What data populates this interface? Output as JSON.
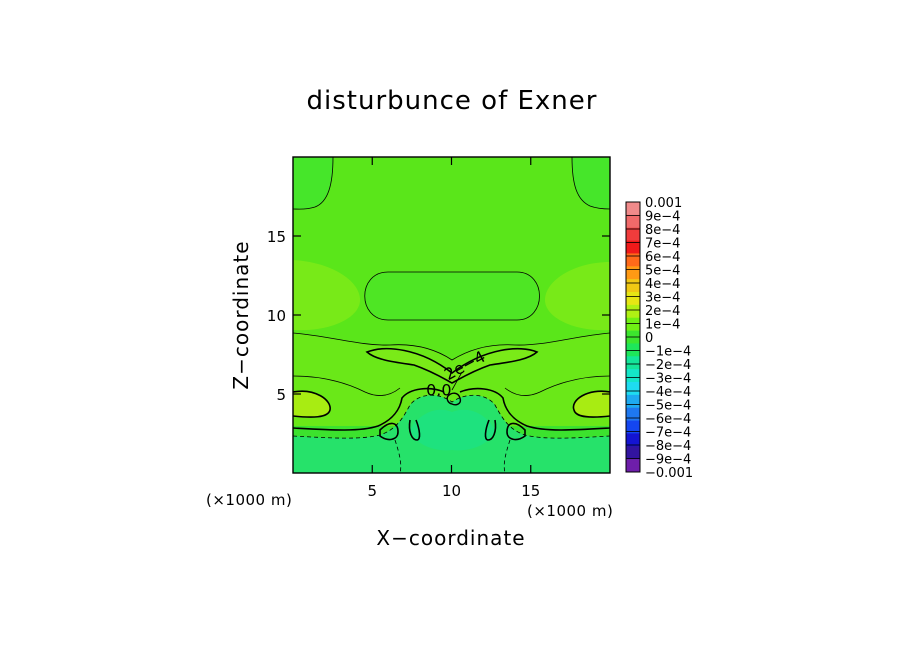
{
  "chart_data": {
    "type": "heatmap",
    "title": "disturbunce of Exner",
    "xlabel": "X−coordinate",
    "ylabel": "Z−coordinate",
    "x_unit_left": "(×1000 m)",
    "x_unit_right": "(×1000 m)",
    "xlim": [
      0,
      20
    ],
    "ylim": [
      0,
      20
    ],
    "x_ticks": [
      5,
      10,
      15
    ],
    "y_ticks": [
      5,
      10,
      15
    ],
    "x_tick_labels": [
      "5",
      "10",
      "15"
    ],
    "y_tick_labels": [
      "5",
      "10",
      "15"
    ],
    "contour_labels": [
      {
        "text": "0.0",
        "x": 9.2,
        "z": 4.9
      },
      {
        "text": "2e−4",
        "x": 11.0,
        "z": 6.5
      }
    ],
    "colorbar": {
      "labels": [
        "0.001",
        "9e−4",
        "8e−4",
        "7e−4",
        "6e−4",
        "5e−4",
        "4e−4",
        "3e−4",
        "2e−4",
        "1e−4",
        "0",
        "−1e−4",
        "−2e−4",
        "−3e−4",
        "−4e−4",
        "−5e−4",
        "−6e−4",
        "−7e−4",
        "−8e−4",
        "−9e−4",
        "−0.001"
      ],
      "values": [
        0.001,
        0.0009,
        0.0008,
        0.0007,
        0.0006,
        0.0005,
        0.0004,
        0.0003,
        0.0002,
        0.0001,
        0,
        -0.0001,
        -0.0002,
        -0.0003,
        -0.0004,
        -0.0005,
        -0.0006,
        -0.0007,
        -0.0008,
        -0.0009,
        -0.001
      ],
      "colors": [
        "#f08a8a",
        "#f06a6a",
        "#f03c3c",
        "#f01a1a",
        "#ff6a1a",
        "#ff9a14",
        "#f0c814",
        "#e6e614",
        "#b0f014",
        "#70f014",
        "#3ce62e",
        "#1ee65a",
        "#14e69a",
        "#14e6c8",
        "#1edcf0",
        "#1eaaf0",
        "#1e78f0",
        "#1446f0",
        "#1414d2",
        "#3214a0",
        "#6e1eaa"
      ]
    }
  }
}
